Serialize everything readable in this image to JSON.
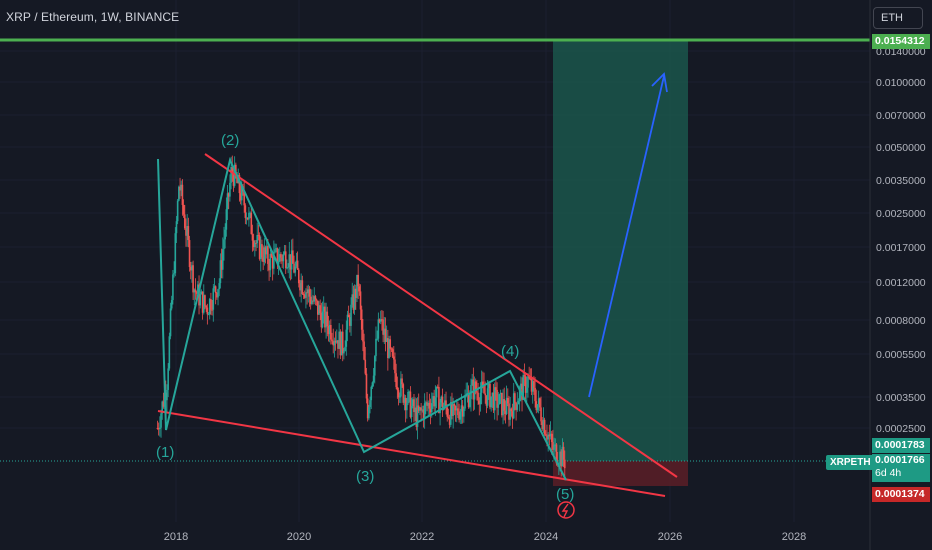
{
  "header": {
    "symbol_title": "XRP / Ethereum, 1W, BINANCE",
    "currency_button": "ETH"
  },
  "price_axis": {
    "labels": [
      "0.0140000",
      "0.0100000",
      "0.0070000",
      "0.0050000",
      "0.0035000",
      "0.0025000",
      "0.0017000",
      "0.0012000",
      "0.0008000",
      "0.0005500",
      "0.0003500",
      "0.0002500"
    ]
  },
  "time_axis": {
    "labels": [
      "2018",
      "2020",
      "2022",
      "2024",
      "2026",
      "2028"
    ]
  },
  "price_tags": {
    "target": "0.0154312",
    "entry": "0.0001783",
    "last_price": "0.0001766",
    "countdown": "6d 4h",
    "stop": "0.0001374",
    "symbol": "XRPETH"
  },
  "wave_labels": [
    "(1)",
    "(2)",
    "(3)",
    "(4)",
    "(5)"
  ],
  "colors": {
    "background": "#151924",
    "candle_up": "#26a69a",
    "candle_down": "#ef5350",
    "wedge_lines": "#f23645",
    "wave_lines": "#26a69a",
    "target_line": "#4caf50",
    "profit_zone": "#1b5e50",
    "loss_zone": "#5b1f27",
    "arrow": "#2962ff"
  },
  "chart_data": {
    "type": "candlestick",
    "interval": "1W",
    "x_range": [
      2017.7,
      2024.3
    ],
    "y_scale": "log",
    "series": [
      {
        "name": "XRPETH",
        "x": [
          2017.7,
          2017.85,
          2017.95,
          2018.05,
          2018.3,
          2018.5,
          2018.7,
          2018.9,
          2019.1,
          2019.3,
          2019.5,
          2019.8,
          2020.1,
          2020.4,
          2020.7,
          2020.95,
          2021.1,
          2021.3,
          2021.6,
          2021.9,
          2022.2,
          2022.5,
          2022.8,
          2023.1,
          2023.4,
          2023.7,
          2023.9,
          2024.1,
          2024.3
        ],
        "y": [
          0.00025,
          0.0004,
          0.0012,
          0.0035,
          0.0011,
          0.0009,
          0.0012,
          0.004,
          0.0028,
          0.0018,
          0.0015,
          0.0016,
          0.0011,
          0.0008,
          0.0006,
          0.0012,
          0.0003,
          0.0008,
          0.0004,
          0.00028,
          0.00035,
          0.00028,
          0.00038,
          0.00035,
          0.0003,
          0.00042,
          0.0003,
          0.0002,
          0.0001766
        ]
      }
    ]
  }
}
